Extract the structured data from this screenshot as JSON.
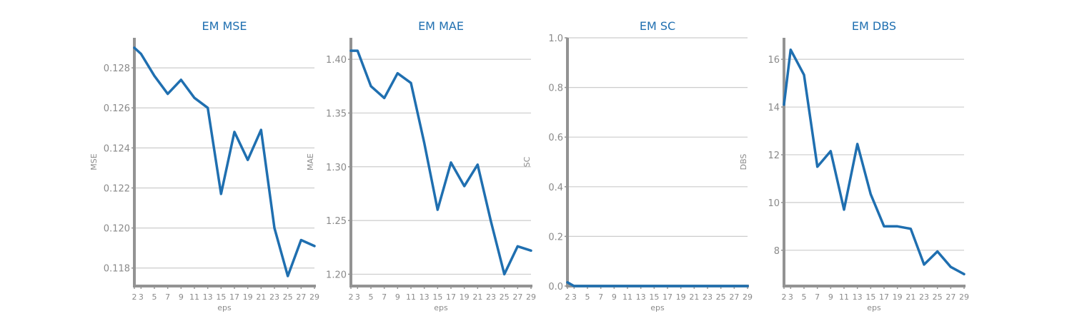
{
  "colors": {
    "title": "#1f6fb0",
    "series": "#1f6fb0",
    "grid": "#cccccc",
    "axis": "#939393",
    "text": "#8a8a8a"
  },
  "chart_data": [
    {
      "type": "line",
      "title": "EM MSE",
      "xlabel": "eps",
      "ylabel": "MSE",
      "x": [
        2,
        3,
        5,
        7,
        9,
        11,
        13,
        15,
        17,
        19,
        21,
        23,
        25,
        27,
        29
      ],
      "xticks": [
        "2",
        "3",
        "5",
        "7",
        "9",
        "11",
        "13",
        "15",
        "17",
        "19",
        "21",
        "23",
        "25",
        "27",
        "29"
      ],
      "xlim": [
        2,
        29
      ],
      "ylim": [
        0.1171,
        0.1295
      ],
      "yticks": [
        0.118,
        0.12,
        0.122,
        0.124,
        0.126,
        0.128
      ],
      "ytick_labels": [
        "0.118",
        "0.120",
        "0.122",
        "0.124",
        "0.126",
        "0.128"
      ],
      "grid": true,
      "series": [
        {
          "values": [
            0.129,
            0.1287,
            0.1276,
            0.1267,
            0.1274,
            0.1265,
            0.126,
            0.1217,
            0.1248,
            0.1234,
            0.1249,
            0.12,
            0.1176,
            0.1194,
            0.1191
          ]
        }
      ]
    },
    {
      "type": "line",
      "title": "EM MAE",
      "xlabel": "eps",
      "ylabel": "MAE",
      "x": [
        2,
        3,
        5,
        7,
        9,
        11,
        13,
        15,
        17,
        19,
        21,
        23,
        25,
        27,
        29
      ],
      "xticks": [
        "2",
        "3",
        "5",
        "7",
        "9",
        "11",
        "13",
        "15",
        "17",
        "19",
        "21",
        "23",
        "25",
        "27",
        "29"
      ],
      "xlim": [
        2,
        29
      ],
      "ylim": [
        1.189,
        1.42
      ],
      "yticks": [
        1.2,
        1.25,
        1.3,
        1.35,
        1.4
      ],
      "ytick_labels": [
        "1.20",
        "1.25",
        "1.30",
        "1.35",
        "1.40"
      ],
      "grid": true,
      "series": [
        {
          "values": [
            1.408,
            1.408,
            1.375,
            1.364,
            1.387,
            1.378,
            1.322,
            1.26,
            1.304,
            1.282,
            1.302,
            1.249,
            1.2,
            1.226,
            1.222
          ]
        }
      ]
    },
    {
      "type": "line",
      "title": "EM SC",
      "xlabel": "eps",
      "ylabel": "SC",
      "x": [
        2,
        3,
        5,
        7,
        9,
        11,
        13,
        15,
        17,
        19,
        21,
        23,
        25,
        27,
        29
      ],
      "xticks": [
        "2",
        "3",
        "5",
        "7",
        "9",
        "11",
        "13",
        "15",
        "17",
        "19",
        "21",
        "23",
        "25",
        "27",
        "29"
      ],
      "xlim": [
        2,
        29
      ],
      "ylim": [
        0.0,
        1.0
      ],
      "yticks": [
        0.0,
        0.2,
        0.4,
        0.6,
        0.8,
        1.0
      ],
      "ytick_labels": [
        "0.0",
        "0.2",
        "0.4",
        "0.6",
        "0.8",
        "1.0"
      ],
      "grid": true,
      "series": [
        {
          "values": [
            0.015,
            0.0,
            0.0,
            0.0,
            0.0,
            0.0,
            0.0,
            0.0,
            0.0,
            0.0,
            0.0,
            0.0,
            0.0,
            0.0,
            0.0
          ]
        }
      ]
    },
    {
      "type": "line",
      "title": "EM DBS",
      "xlabel": "eps",
      "ylabel": "DBS",
      "x": [
        2,
        3,
        5,
        7,
        9,
        11,
        13,
        15,
        17,
        19,
        21,
        23,
        25,
        27,
        29
      ],
      "xticks": [
        "2",
        "3",
        "5",
        "7",
        "9",
        "11",
        "13",
        "15",
        "17",
        "19",
        "21",
        "23",
        "25",
        "27",
        "29"
      ],
      "xlim": [
        2,
        29
      ],
      "ylim": [
        6.5,
        16.9
      ],
      "yticks": [
        8,
        10,
        12,
        14,
        16
      ],
      "ytick_labels": [
        "8",
        "10",
        "12",
        "14",
        "16"
      ],
      "grid": true,
      "series": [
        {
          "values": [
            14.1,
            16.4,
            15.35,
            11.5,
            12.15,
            9.7,
            12.45,
            10.35,
            9.0,
            9.0,
            8.9,
            7.4,
            7.95,
            7.3,
            7.0
          ]
        }
      ]
    }
  ]
}
